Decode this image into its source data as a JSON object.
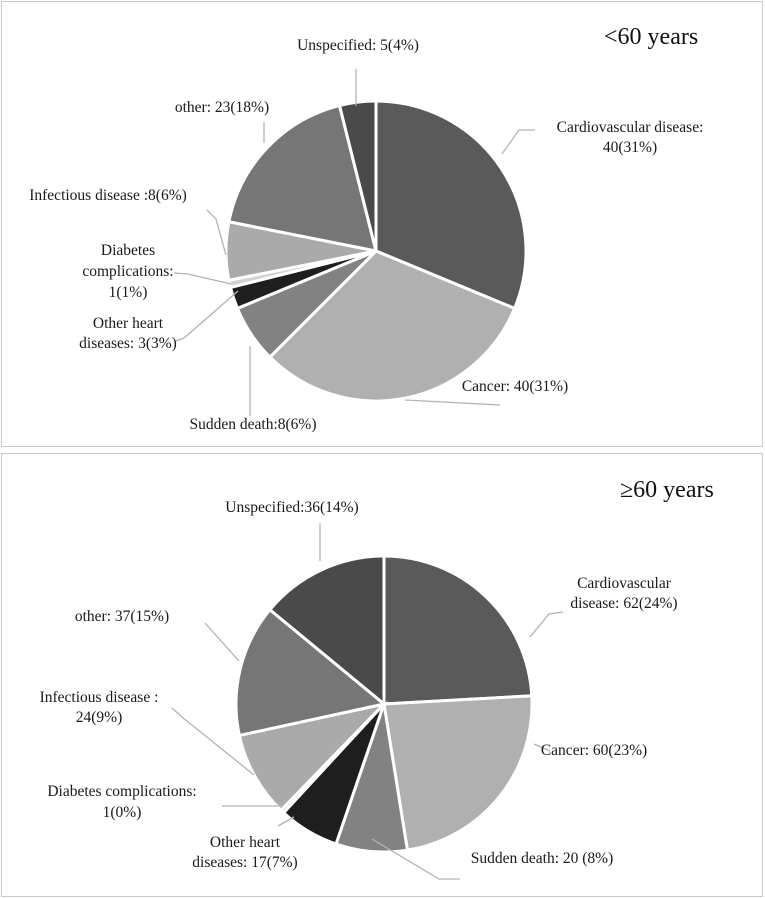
{
  "chart_data": [
    {
      "type": "pie",
      "title": "<60 years",
      "slices": [
        {
          "label": "Cardiovascular disease",
          "count": 40,
          "percent": 31,
          "color": "#5a5a5a",
          "label_lines": [
            "Cardiovascular disease:",
            "40(31%)"
          ]
        },
        {
          "label": "Cancer",
          "count": 40,
          "percent": 31,
          "color": "#b0b0b0",
          "label_lines": [
            "Cancer: 40(31%)"
          ]
        },
        {
          "label": "Sudden death",
          "count": 8,
          "percent": 6,
          "color": "#828282",
          "label_lines": [
            "Sudden death:8(6%)"
          ]
        },
        {
          "label": "Other heart diseases",
          "count": 3,
          "percent": 3,
          "color": "#1e1e1e",
          "label_lines": [
            "Other heart",
            "diseases: 3(3%)"
          ]
        },
        {
          "label": "Diabetes complications",
          "count": 1,
          "percent": 1,
          "color": "#d2d2d2",
          "label_lines": [
            "Diabetes",
            "complications:",
            "1(1%)"
          ]
        },
        {
          "label": "Infectious disease",
          "count": 8,
          "percent": 6,
          "color": "#aaaaaa",
          "label_lines": [
            "Infectious disease :8(6%)"
          ]
        },
        {
          "label": "other",
          "count": 23,
          "percent": 18,
          "color": "#767676",
          "label_lines": [
            "other: 23(18%)"
          ]
        },
        {
          "label": "Unspecified",
          "count": 5,
          "percent": 4,
          "color": "#4a4a4a",
          "label_lines": [
            "Unspecified: 5(4%)"
          ]
        }
      ]
    },
    {
      "type": "pie",
      "title": "≥60 years",
      "slices": [
        {
          "label": "Cardiovascular disease",
          "count": 62,
          "percent": 24,
          "color": "#5a5a5a",
          "label_lines": [
            "Cardiovascular",
            "disease: 62(24%)"
          ]
        },
        {
          "label": "Cancer",
          "count": 60,
          "percent": 23,
          "color": "#b0b0b0",
          "label_lines": [
            "Cancer: 60(23%)"
          ]
        },
        {
          "label": "Sudden death",
          "count": 20,
          "percent": 8,
          "color": "#828282",
          "label_lines": [
            "Sudden death: 20 (8%)"
          ]
        },
        {
          "label": "Other heart diseases",
          "count": 17,
          "percent": 7,
          "color": "#1e1e1e",
          "label_lines": [
            "Other heart",
            "diseases: 17(7%)"
          ]
        },
        {
          "label": "Diabetes complications",
          "count": 1,
          "percent": 0,
          "color": "#d2d2d2",
          "label_lines": [
            "Diabetes complications:",
            "1(0%)"
          ]
        },
        {
          "label": "Infectious disease",
          "count": 24,
          "percent": 9,
          "color": "#aaaaaa",
          "label_lines": [
            "Infectious disease :",
            "24(9%)"
          ]
        },
        {
          "label": "other",
          "count": 37,
          "percent": 15,
          "color": "#767676",
          "label_lines": [
            "other: 37(15%)"
          ]
        },
        {
          "label": "Unspecified",
          "count": 36,
          "percent": 14,
          "color": "#4a4a4a",
          "label_lines": [
            "Unspecified:36(14%)"
          ]
        }
      ]
    }
  ]
}
